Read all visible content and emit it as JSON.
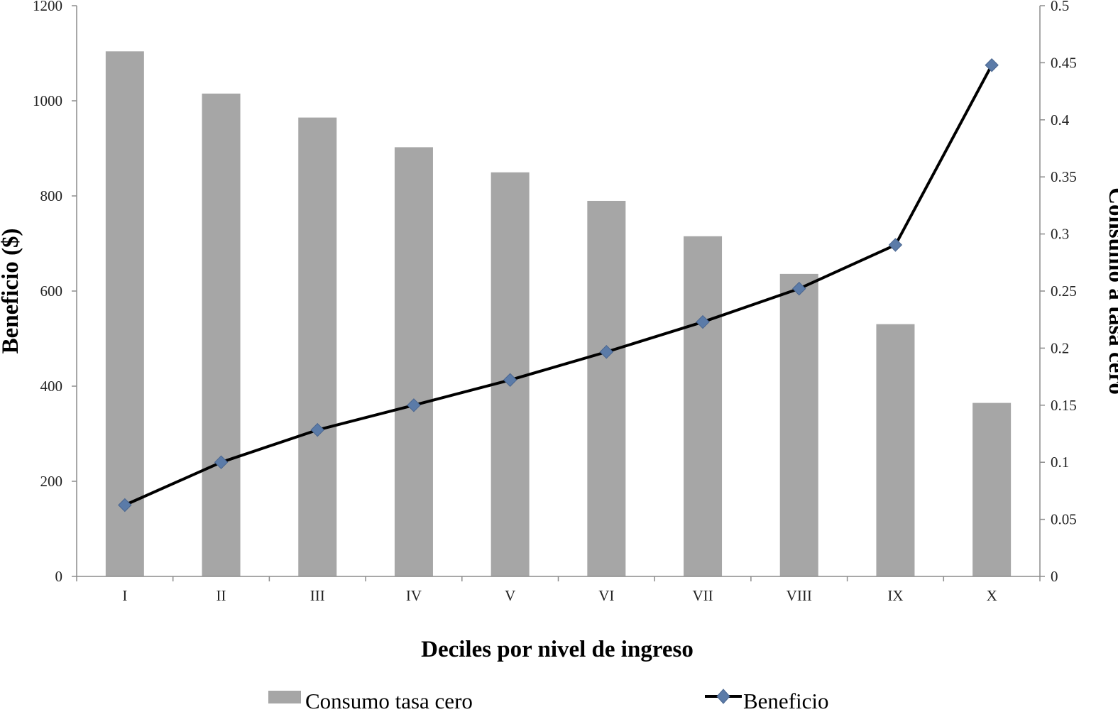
{
  "chart_data": {
    "type": "bar",
    "xlabel": "Deciles por nivel de ingreso",
    "ylabel": "Beneficio ($)",
    "y2label": "Consumo a tasa cero",
    "categories": [
      "I",
      "II",
      "III",
      "IV",
      "V",
      "VI",
      "VII",
      "VIII",
      "IX",
      "X"
    ],
    "ylim": [
      0,
      1200
    ],
    "yticks": [
      "0",
      "200",
      "400",
      "600",
      "800",
      "1000",
      "1200"
    ],
    "y2lim": [
      0,
      0.5
    ],
    "y2ticks": [
      "0",
      "0.05",
      "0.1",
      "0.15",
      "0.2",
      "0.25",
      "0.3",
      "0.35",
      "0.4",
      "0.45",
      "0.5"
    ],
    "series": [
      {
        "name": "Consumo tasa cero",
        "type": "bar",
        "axis": "right",
        "color": "#a6a6a6",
        "values": [
          0.46,
          0.423,
          0.402,
          0.376,
          0.354,
          0.329,
          0.298,
          0.265,
          0.221,
          0.152
        ]
      },
      {
        "name": "Beneficio",
        "type": "line",
        "axis": "left",
        "color": "#000000",
        "marker": "diamond",
        "marker_color": "#5b7ba8",
        "values": [
          150,
          240,
          308,
          360,
          413,
          472,
          535,
          605,
          697,
          1075
        ]
      }
    ],
    "legend": "bottom",
    "grid": false
  }
}
